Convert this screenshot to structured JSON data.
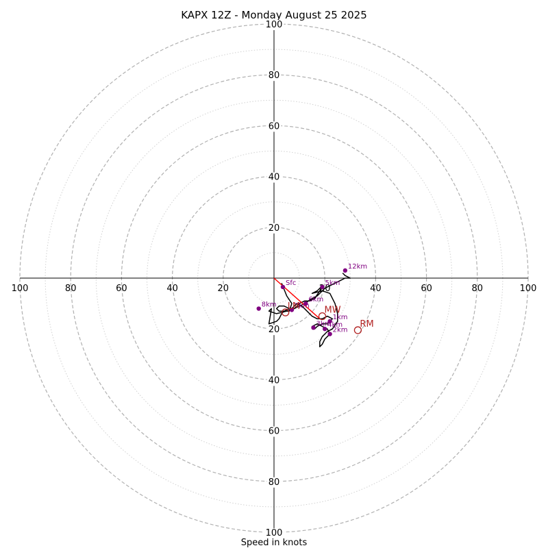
{
  "chart_data": {
    "type": "scatter",
    "subtype": "hodograph",
    "title": "KAPX 12Z - Monday August 25 2025",
    "xlabel": "Speed in knots",
    "units": "knots",
    "xlim": [
      -100,
      100
    ],
    "ylim": [
      -100,
      100
    ],
    "ring_step": 10,
    "tick_labels": [
      "20",
      "40",
      "60",
      "80",
      "100"
    ],
    "grid": true,
    "colors": {
      "trace": "#000000",
      "markers": "#800080",
      "labels": "#800080",
      "shear_vector": "#ff0000",
      "motion": "#b22222",
      "grid_major": "#b0b0b0",
      "grid_minor": "#d0d0d0"
    },
    "trace": [
      [
        3,
        -2
      ],
      [
        5,
        -7
      ],
      [
        7,
        -10
      ],
      [
        6,
        -13
      ],
      [
        4,
        -13
      ],
      [
        3,
        -14
      ],
      [
        2,
        -16
      ],
      [
        1,
        -17
      ],
      [
        -2,
        -18
      ],
      [
        -1,
        -12
      ],
      [
        -2,
        -13
      ],
      [
        1,
        -14
      ],
      [
        5,
        -13
      ],
      [
        8,
        -12
      ],
      [
        10,
        -10
      ],
      [
        12,
        -9
      ],
      [
        14,
        -9
      ],
      [
        16,
        -8
      ],
      [
        18,
        -5
      ],
      [
        19,
        -3
      ],
      [
        17,
        -5
      ],
      [
        15,
        -6
      ],
      [
        19,
        -5
      ],
      [
        22,
        -6
      ],
      [
        24,
        -10
      ],
      [
        25,
        -14
      ],
      [
        25,
        -17
      ],
      [
        23,
        -20
      ],
      [
        21,
        -21
      ],
      [
        20,
        -22
      ],
      [
        19,
        -23
      ],
      [
        18,
        -25
      ],
      [
        18,
        -27
      ],
      [
        19,
        -26
      ],
      [
        20,
        -24
      ],
      [
        21,
        -23
      ],
      [
        22,
        -22
      ],
      [
        21,
        -20
      ],
      [
        19,
        -19
      ],
      [
        17,
        -18
      ],
      [
        15,
        -19
      ],
      [
        16,
        -20
      ],
      [
        17,
        -19
      ],
      [
        19,
        -18
      ],
      [
        21,
        -18
      ],
      [
        22,
        -17
      ],
      [
        23,
        -16
      ],
      [
        21,
        -15
      ],
      [
        19,
        -16
      ],
      [
        17,
        -16
      ],
      [
        15,
        -15
      ],
      [
        13,
        -13
      ],
      [
        11,
        -11
      ],
      [
        9,
        -10
      ],
      [
        8,
        -11
      ],
      [
        7,
        -12
      ],
      [
        6,
        -12
      ],
      [
        4,
        -13
      ],
      [
        2,
        -13
      ],
      [
        1,
        -12
      ],
      [
        2,
        -11
      ],
      [
        4,
        -11
      ],
      [
        6,
        -12
      ],
      [
        8,
        -12
      ],
      [
        10,
        -11
      ],
      [
        12,
        -10
      ],
      [
        15,
        -8
      ],
      [
        17,
        -7
      ],
      [
        19,
        -5
      ],
      [
        20,
        -4
      ],
      [
        22,
        -3
      ],
      [
        24,
        -2
      ],
      [
        26,
        -1
      ],
      [
        28,
        0
      ],
      [
        30,
        0
      ],
      [
        28,
        1
      ],
      [
        27,
        2
      ]
    ],
    "points": [
      {
        "label": "Sfc",
        "x": 3.5,
        "y": -3.5
      },
      {
        "label": "1km",
        "x": 22,
        "y": -17
      },
      {
        "label": "2km",
        "x": 22,
        "y": -22
      },
      {
        "label": "3km",
        "x": 15.5,
        "y": -19.5
      },
      {
        "label": "4km",
        "x": 20,
        "y": -20
      },
      {
        "label": "5km",
        "x": 19,
        "y": -3.5
      },
      {
        "label": "6km",
        "x": 12.5,
        "y": -10
      },
      {
        "label": "7km",
        "x": 7,
        "y": -12.5
      },
      {
        "label": "8km",
        "x": -6,
        "y": -12
      },
      {
        "label": "12km",
        "x": 28,
        "y": 3
      }
    ],
    "shear_vector": {
      "from": [
        0,
        0
      ],
      "to": [
        18,
        -16
      ]
    },
    "storm_motion": [
      {
        "label": "RM",
        "x": 33,
        "y": -20.5
      },
      {
        "label": "LM",
        "x": 4.5,
        "y": -13.5
      },
      {
        "label": "MW",
        "x": 19,
        "y": -15
      }
    ]
  }
}
